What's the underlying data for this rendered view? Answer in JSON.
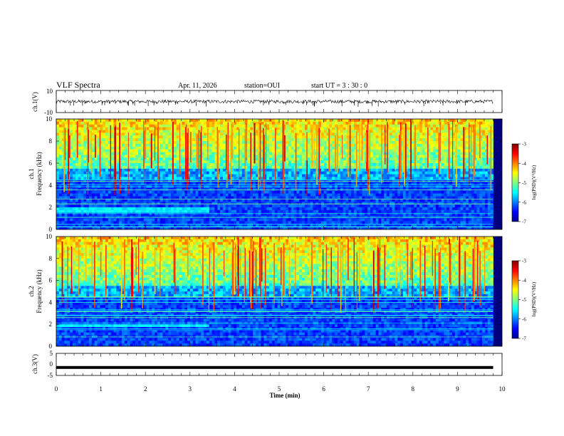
{
  "header": {
    "title": "VLF Spectra",
    "date": "Apr. 11, 2026",
    "station": "station=OUI",
    "start": "start  UT =   3  : 30 : 0"
  },
  "chart_data": [
    {
      "id": "ch1_waveform",
      "type": "line",
      "ylabel": "ch.1(V)",
      "ylim": [
        -10,
        10
      ],
      "yticks": [
        "10",
        "-10"
      ],
      "xlim": [
        0,
        10
      ],
      "description_values": {
        "baseline": 0,
        "typical_amplitude": 1.5,
        "max_spike": -5
      }
    },
    {
      "id": "ch1_spectrogram",
      "type": "heatmap",
      "ylabel": "ch.1",
      "ylabel2": "Frequency (kHz)",
      "ylim": [
        0,
        10
      ],
      "yticks": [
        "0",
        "2",
        "4",
        "6",
        "8",
        "10"
      ],
      "xlim": [
        0,
        10
      ],
      "data_extent_min": 9.8,
      "colorbar": {
        "label": "log(PSD)(V²/Hz)",
        "range": [
          -7,
          -3
        ],
        "ticks": [
          "-3",
          "-4",
          "-5",
          "-6",
          "-7"
        ]
      },
      "features": {
        "band_khz": [
          1.5,
          2.0
        ],
        "band_end_min": 3.4
      }
    },
    {
      "id": "ch2_spectrogram",
      "type": "heatmap",
      "ylabel": "ch.2",
      "ylabel2": "Frequency (kHz)",
      "ylim": [
        0,
        10
      ],
      "yticks": [
        "0",
        "2",
        "4",
        "6",
        "8",
        "10"
      ],
      "xlim": [
        0,
        10
      ],
      "data_extent_min": 9.8,
      "colorbar": {
        "label": "log(PSD)(V²/Hz)",
        "range": [
          -7,
          -3
        ],
        "ticks": [
          "-3",
          "-4",
          "-5",
          "-6",
          "-7"
        ]
      },
      "features": {
        "band_khz": [
          1.7,
          2.1
        ],
        "band_end_min": 3.45
      }
    },
    {
      "id": "ch3_waveform",
      "type": "line",
      "ylabel": "ch.3(V)",
      "ylim": [
        -5,
        5
      ],
      "yticks": [
        "5",
        "0",
        "-5"
      ],
      "xlim": [
        0,
        10
      ],
      "xlabel": "Time  (min)",
      "xticks": [
        "0",
        "1",
        "2",
        "3",
        "4",
        "5",
        "6",
        "7",
        "8",
        "9",
        "10"
      ],
      "description_values": {
        "level": -1.4
      }
    }
  ],
  "colors": {
    "colormap": [
      "#00008f",
      "#0000ff",
      "#007fff",
      "#00ffff",
      "#7fff7f",
      "#ffff00",
      "#ff7f00",
      "#ff0000",
      "#7f0000"
    ],
    "line": "#000000"
  }
}
